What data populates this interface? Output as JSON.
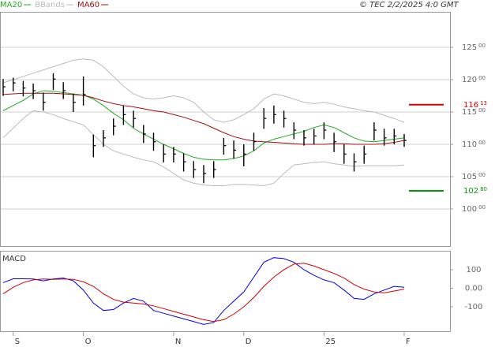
{
  "header": {
    "copyright": "© TEC 2/2/2025 4:0 GMT"
  },
  "chart_data": [
    {
      "type": "ohlc",
      "categories": [
        null,
        "S",
        null,
        null,
        null,
        null,
        null,
        null,
        "O",
        null,
        null,
        null,
        null,
        null,
        null,
        null,
        null,
        "N",
        null,
        null,
        null,
        null,
        null,
        null,
        "D",
        null,
        null,
        null,
        null,
        null,
        null,
        null,
        "25",
        null,
        null,
        null,
        null,
        null,
        null,
        null,
        "F"
      ],
      "high": [
        120.1,
        120.3,
        119.8,
        119.4,
        118.0,
        121.0,
        119.6,
        117.8,
        120.5,
        111.5,
        112.2,
        114.0,
        116.0,
        115.2,
        113.0,
        111.8,
        110.0,
        109.6,
        108.6,
        107.4,
        106.8,
        107.4,
        111.0,
        110.6,
        110.0,
        111.8,
        115.6,
        116.0,
        115.2,
        113.4,
        112.2,
        112.4,
        113.4,
        111.8,
        110.0,
        108.6,
        109.8,
        113.4,
        112.4,
        112.4,
        111.6
      ],
      "low": [
        117.5,
        118.2,
        117.4,
        117.0,
        115.2,
        118.4,
        117.0,
        115.0,
        116.0,
        108.0,
        109.6,
        111.4,
        113.0,
        112.6,
        110.2,
        109.0,
        107.2,
        107.2,
        105.8,
        104.8,
        104.0,
        104.8,
        108.4,
        107.8,
        106.6,
        109.0,
        112.4,
        113.2,
        112.6,
        110.8,
        109.8,
        110.0,
        110.8,
        108.8,
        107.0,
        105.8,
        107.0,
        110.6,
        109.8,
        110.0,
        109.6
      ],
      "close": [
        118.9,
        119.5,
        118.7,
        118.3,
        116.5,
        120.1,
        118.3,
        116.5,
        117.7,
        109.8,
        111.0,
        112.8,
        114.6,
        114.0,
        111.6,
        110.4,
        108.5,
        108.5,
        107.3,
        106.1,
        105.5,
        106.1,
        109.8,
        109.1,
        108.5,
        110.4,
        114.0,
        114.6,
        114.0,
        112.2,
        111.0,
        111.3,
        112.2,
        110.4,
        108.5,
        107.3,
        108.5,
        112.2,
        111.0,
        111.3,
        110.6
      ],
      "color": "#000000",
      "series": [
        {
          "name": "MA20",
          "color": "#22aa22",
          "values": [
            115.2,
            116.0,
            116.8,
            117.8,
            118.3,
            118.2,
            118.0,
            117.8,
            117.6,
            117.0,
            116.0,
            114.8,
            113.8,
            112.5,
            111.6,
            110.8,
            110.0,
            109.3,
            108.6,
            108.0,
            107.7,
            107.6,
            107.6,
            107.8,
            108.2,
            109.0,
            110.2,
            110.8,
            111.2,
            111.6,
            112.0,
            112.6,
            113.0,
            112.6,
            111.8,
            111.0,
            110.5,
            110.4,
            110.6,
            110.8,
            111.0
          ]
        },
        {
          "name": "BBands",
          "color": "#bbbbbb",
          "upper": [
            119.5,
            120.0,
            120.5,
            121.0,
            121.5,
            122.0,
            122.5,
            123.0,
            123.2,
            123.0,
            122.0,
            120.5,
            119.0,
            117.8,
            117.2,
            117.0,
            117.2,
            117.5,
            117.2,
            116.5,
            115.0,
            113.8,
            113.4,
            113.8,
            114.6,
            115.5,
            117.0,
            117.8,
            117.5,
            117.0,
            116.5,
            116.3,
            116.5,
            116.2,
            115.8,
            115.5,
            115.2,
            115.0,
            114.5,
            114.0,
            113.4
          ],
          "lower": [
            111.0,
            112.5,
            114.0,
            115.2,
            115.0,
            114.6,
            114.0,
            113.5,
            113.0,
            111.5,
            110.0,
            109.0,
            108.5,
            108.0,
            107.6,
            107.3,
            106.5,
            105.5,
            104.5,
            104.0,
            103.7,
            103.6,
            103.6,
            103.8,
            103.8,
            103.7,
            103.6,
            104.0,
            105.5,
            106.8,
            107.0,
            107.2,
            107.3,
            107.0,
            106.8,
            106.6,
            106.7,
            106.7,
            106.7,
            106.7,
            106.8
          ]
        },
        {
          "name": "MA60",
          "color": "#a01010",
          "values": [
            117.7,
            117.8,
            117.9,
            117.9,
            117.9,
            117.9,
            117.8,
            117.7,
            117.6,
            117.2,
            116.7,
            116.3,
            116.0,
            115.8,
            115.5,
            115.2,
            115.0,
            114.6,
            114.2,
            113.7,
            113.2,
            112.5,
            111.8,
            111.2,
            110.8,
            110.5,
            110.4,
            110.3,
            110.2,
            110.1,
            110.0,
            110.0,
            110.0,
            110.1,
            110.1,
            110.0,
            110.0,
            110.0,
            110.1,
            110.3,
            110.6
          ]
        }
      ],
      "levels": [
        {
          "value": 116.13,
          "label": "11613",
          "color": "#dd0000"
        },
        {
          "value": 102.8,
          "label": "10280",
          "color": "#009900"
        }
      ],
      "ylim": [
        94.27,
        130.49
      ],
      "yticks": [
        {
          "value": 100,
          "label": "10000"
        },
        {
          "value": 105,
          "label": "10500"
        },
        {
          "value": 110,
          "label": "11000"
        },
        {
          "value": 115,
          "label": "11500"
        },
        {
          "value": 120,
          "label": "12000"
        },
        {
          "value": 125,
          "label": "12500"
        }
      ],
      "grid": true
    },
    {
      "type": "line",
      "title": "MACD",
      "series": [
        {
          "color": "#0000dd",
          "values": [
            30,
            51,
            51,
            50,
            40,
            50,
            55,
            40,
            -10,
            -80,
            -120,
            -115,
            -80,
            -55,
            -70,
            -120,
            -135,
            -150,
            -165,
            -180,
            -195,
            -185,
            -120,
            -70,
            -20,
            60,
            140,
            165,
            160,
            140,
            100,
            70,
            45,
            30,
            -10,
            -55,
            -60,
            -30,
            -10,
            10,
            5
          ]
        },
        {
          "color": "#cc0000",
          "values": [
            -30,
            5,
            30,
            45,
            50,
            48,
            50,
            48,
            35,
            10,
            -30,
            -60,
            -75,
            -80,
            -85,
            -95,
            -110,
            -125,
            -140,
            -155,
            -170,
            -180,
            -170,
            -140,
            -100,
            -50,
            10,
            60,
            100,
            130,
            135,
            120,
            100,
            80,
            55,
            20,
            -5,
            -20,
            -25,
            -15,
            -5
          ]
        }
      ],
      "ylim": [
        -232,
        202
      ],
      "yticks": [
        -100,
        {
          "value": 0,
          "label": "0.00"
        },
        100
      ]
    }
  ]
}
